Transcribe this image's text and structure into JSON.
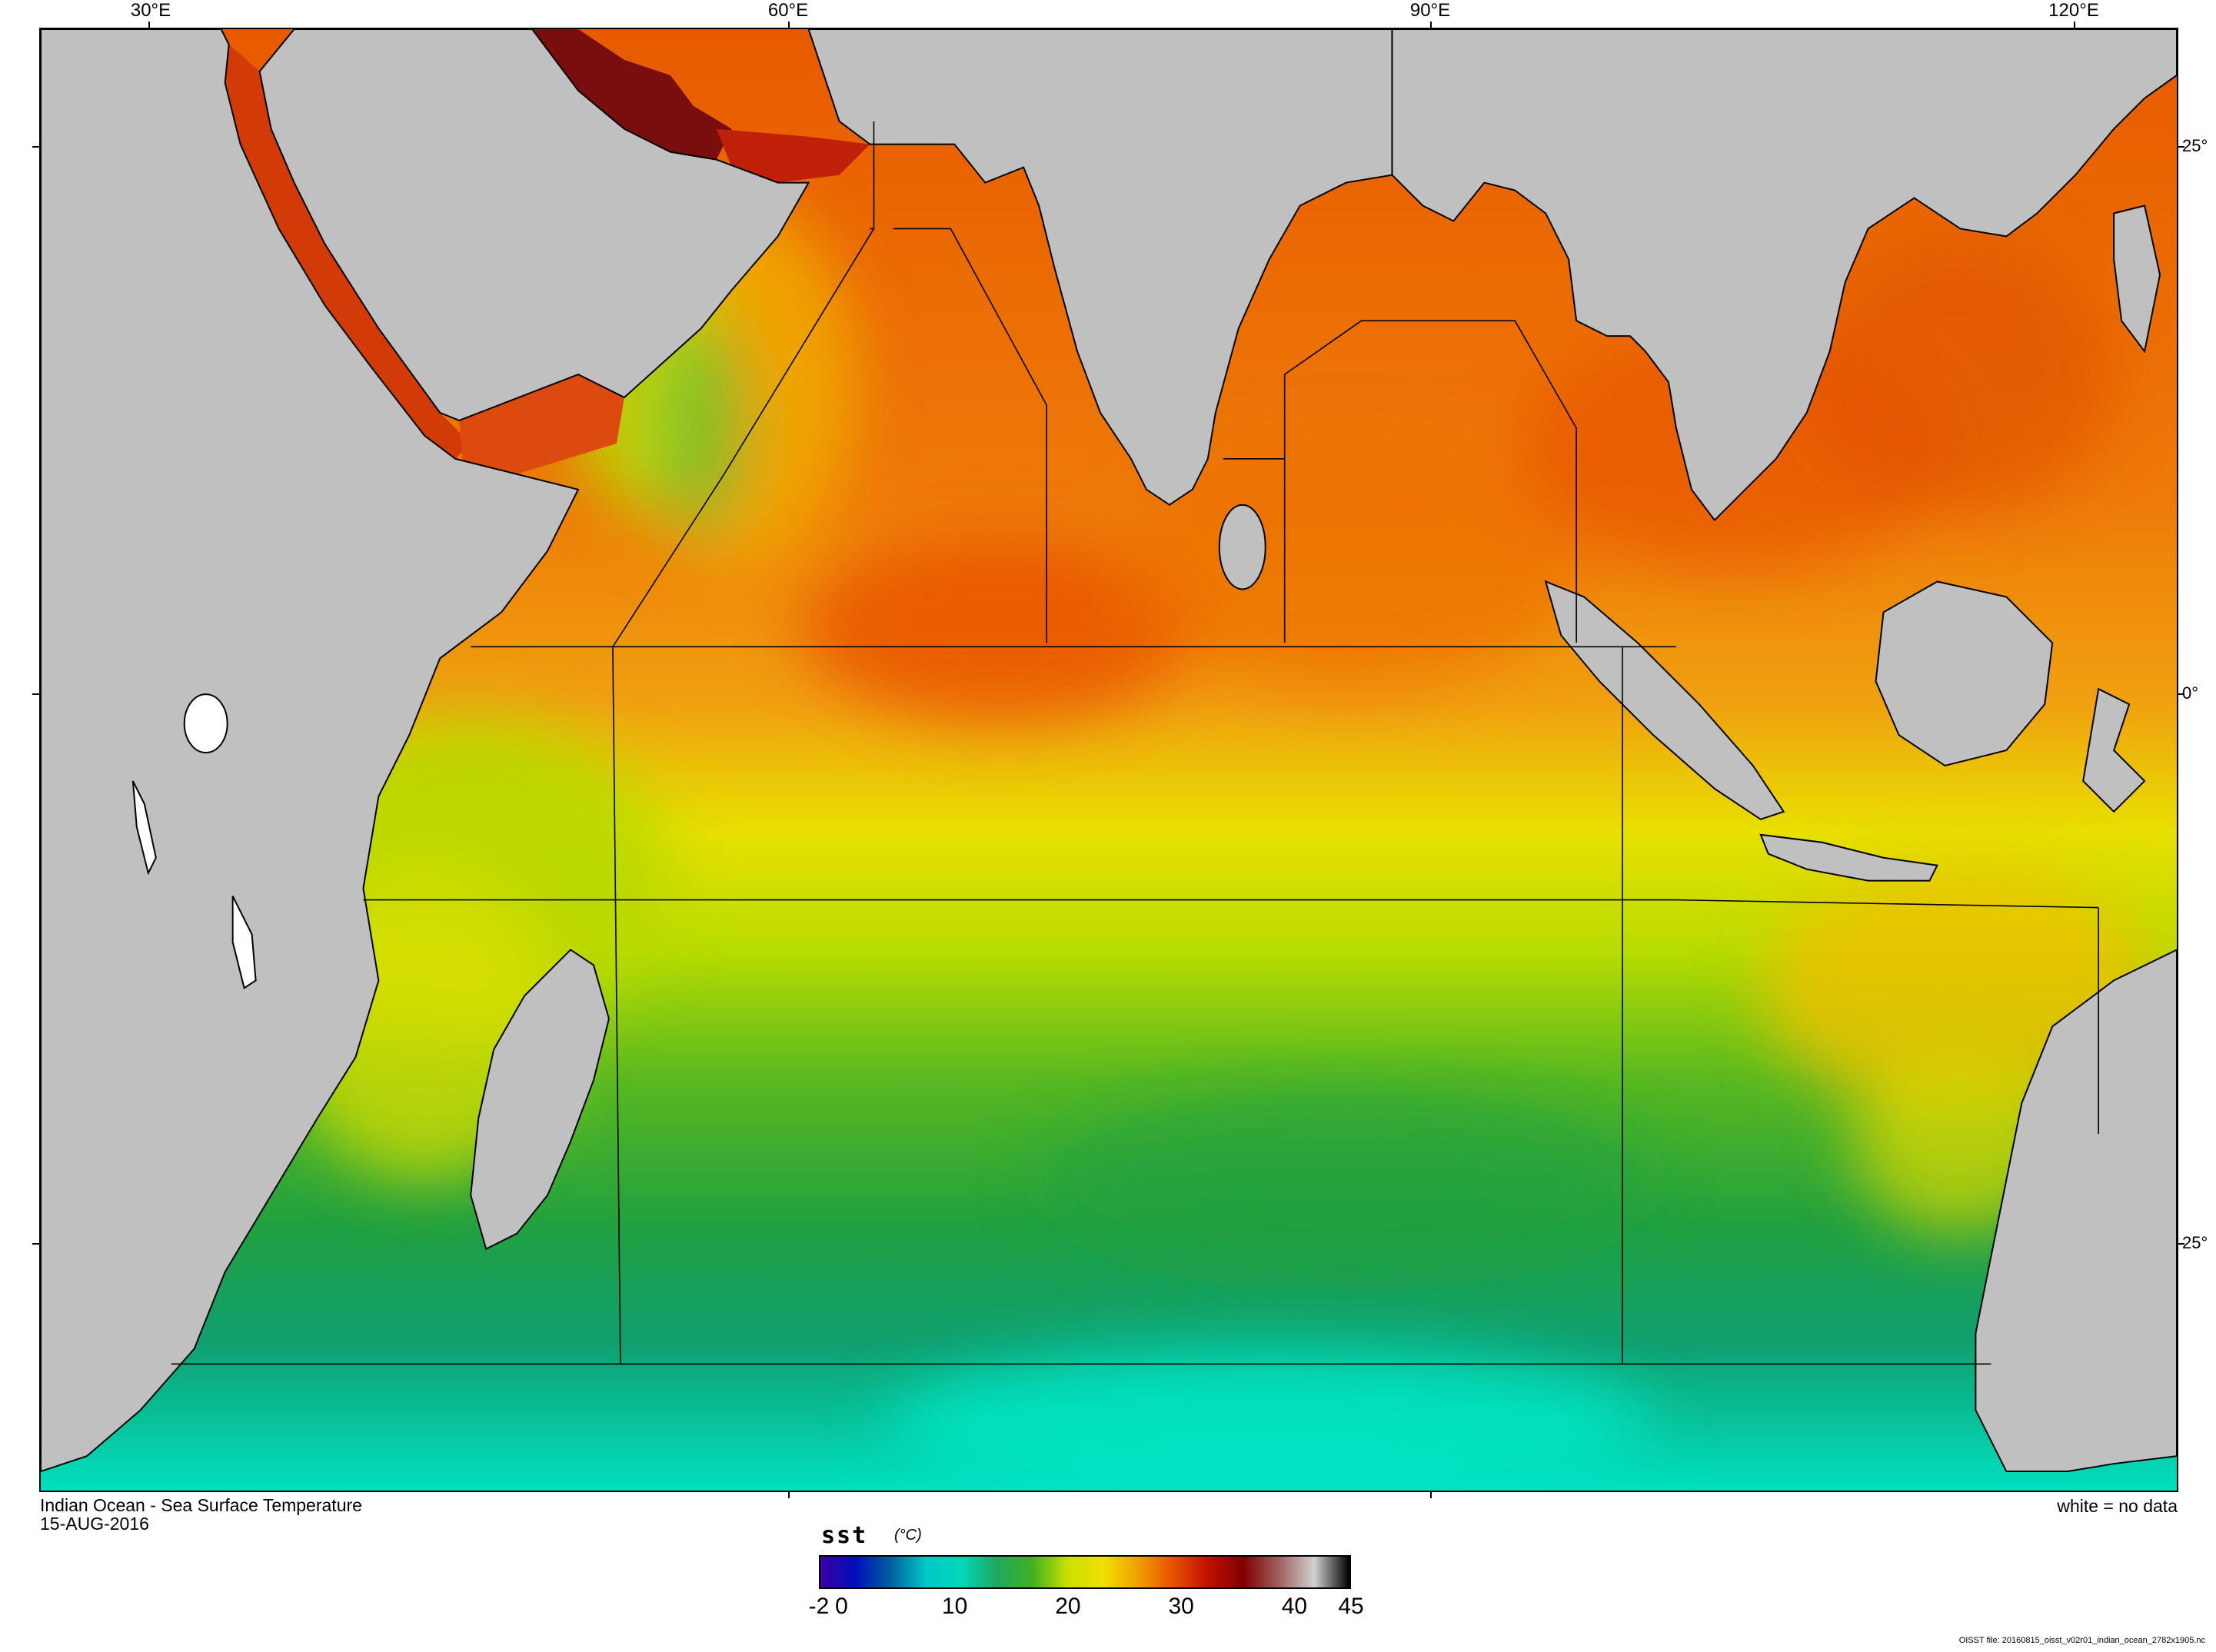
{
  "title": {
    "line1": "Indian Ocean - Sea Surface Temperature",
    "line2": "15-AUG-2016"
  },
  "no_data_note": "white = no data",
  "axes": {
    "lon_labels": [
      "30°E",
      "60°E",
      "90°E",
      "120°E"
    ],
    "lat_labels": [
      "25°",
      "0°",
      "25°"
    ]
  },
  "colorbar": {
    "variable": "sst",
    "unit": "(°C)",
    "range": [
      -2,
      45
    ],
    "ticks": [
      "-2",
      "0",
      "10",
      "20",
      "30",
      "40",
      "45"
    ],
    "tick_values": [
      -2,
      0,
      10,
      20,
      30,
      40,
      45
    ],
    "colors": [
      "#3a00a8",
      "#0010b8",
      "#0060a0",
      "#00c8c8",
      "#00d8b8",
      "#20a860",
      "#40b020",
      "#c8e000",
      "#f0e000",
      "#f0a000",
      "#e85000",
      "#c01000",
      "#800000",
      "#a06060",
      "#d0d0d0",
      "#000000"
    ]
  },
  "legend_colors": {
    "land": "#c0c0c0",
    "no_data": "#ffffff"
  },
  "file_note": "OISST file: 20160815_oisst_v02r01_indian_ocean_2782x1905.nc"
}
